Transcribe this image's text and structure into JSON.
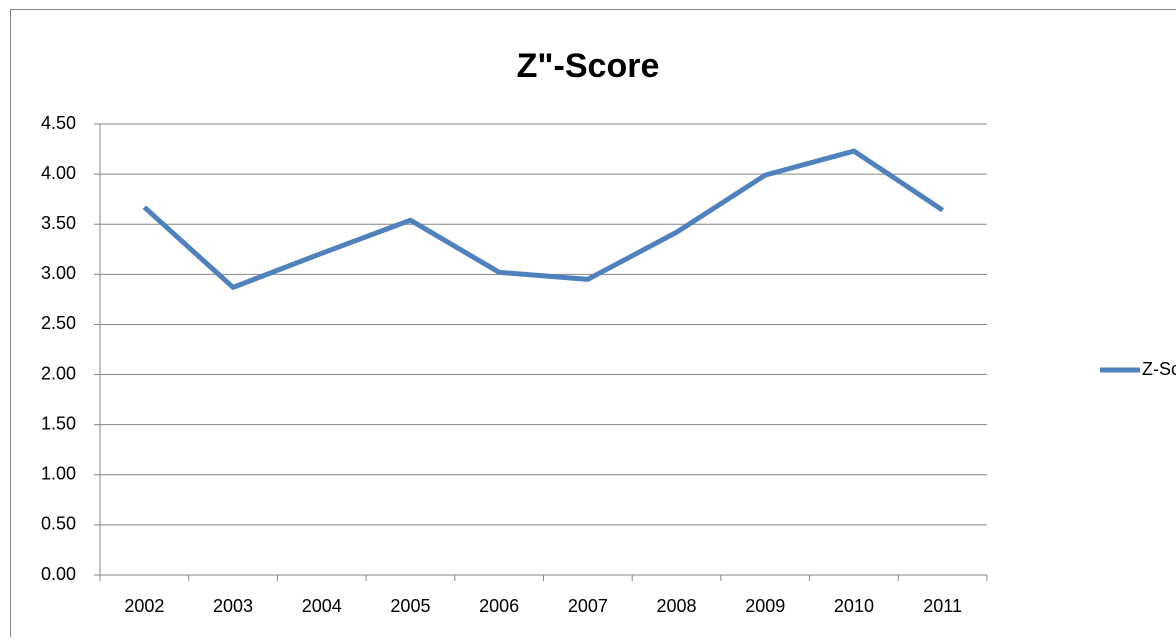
{
  "chart_data": {
    "type": "line",
    "title": "Z\"-Score",
    "categories": [
      "2002",
      "2003",
      "2004",
      "2005",
      "2006",
      "2007",
      "2008",
      "2009",
      "2010",
      "2011"
    ],
    "series": [
      {
        "name": "Z-Score",
        "color": "#4f81bd",
        "values": [
          3.67,
          2.87,
          3.21,
          3.54,
          3.02,
          2.95,
          3.42,
          3.99,
          4.23,
          3.64
        ]
      }
    ],
    "ylim": [
      0,
      4.5
    ],
    "yticks": [
      {
        "value": 0,
        "label": "0.00"
      },
      {
        "value": 0.5,
        "label": "0.50"
      },
      {
        "value": 1,
        "label": "1.00"
      },
      {
        "value": 1.5,
        "label": "1.50"
      },
      {
        "value": 2,
        "label": "2.00"
      },
      {
        "value": 2.5,
        "label": "2.50"
      },
      {
        "value": 3,
        "label": "3.00"
      },
      {
        "value": 3.5,
        "label": "3.50"
      },
      {
        "value": 4,
        "label": "4.00"
      },
      {
        "value": 4.5,
        "label": "4.50"
      }
    ],
    "grid": true,
    "legend": "right"
  }
}
